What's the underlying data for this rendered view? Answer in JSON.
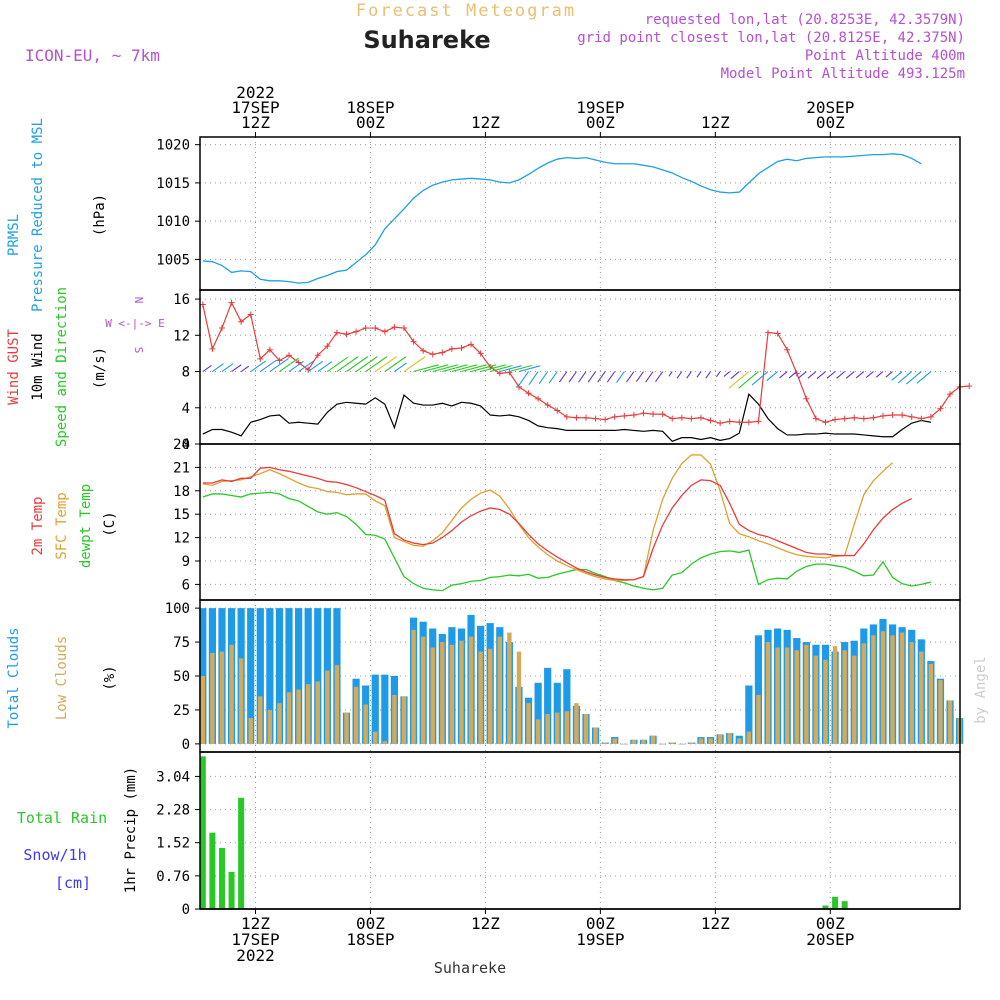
{
  "header": {
    "forecast_title": "Forecast Meteogram",
    "location": "Suhareke",
    "model": "ICON-EU,  ~ 7km",
    "requested": "requested lon,lat (20.8253E, 42.3579N)",
    "grid_point": "grid point closest lon,lat (20.8125E, 42.375N)",
    "point_altitude": "Point Altitude 400m",
    "model_altitude": "Model Point Altitude 493.125m"
  },
  "time_axis": {
    "top_labels": [
      {
        "hour": 0,
        "lines": [
          "2022",
          "17SEP",
          "12Z"
        ]
      },
      {
        "hour": 12,
        "lines": [
          "18SEP",
          "00Z"
        ]
      },
      {
        "hour": 24,
        "lines": [
          "12Z"
        ]
      },
      {
        "hour": 36,
        "lines": [
          "19SEP",
          "00Z"
        ]
      },
      {
        "hour": 48,
        "lines": [
          "12Z"
        ]
      },
      {
        "hour": 60,
        "lines": [
          "20SEP",
          "00Z"
        ]
      }
    ],
    "bottom_labels": [
      {
        "hour": 0,
        "lines": [
          "12Z",
          "17SEP",
          "2022"
        ]
      },
      {
        "hour": 12,
        "lines": [
          "00Z",
          "18SEP"
        ]
      },
      {
        "hour": 24,
        "lines": [
          "12Z"
        ]
      },
      {
        "hour": 36,
        "lines": [
          "00Z",
          "19SEP"
        ]
      },
      {
        "hour": 48,
        "lines": [
          "12Z"
        ]
      },
      {
        "hour": 60,
        "lines": [
          "00Z",
          "20SEP"
        ]
      }
    ],
    "footer": "Suhareke",
    "watermark": "by Angel"
  },
  "colors": {
    "pressure": "#1ea0e6",
    "gust": "#e83c3c",
    "wind": "#000000",
    "dir_green": "#28c828",
    "temp2m": "#e83c3c",
    "sfc": "#e0a030",
    "dewpt": "#28c828",
    "total_cloud": "#1e9be8",
    "low_cloud": "#d2aa5a",
    "rain": "#28c828",
    "snow": "#3c3cf0",
    "meta": "#b450d2",
    "title_orange": "#e8c070"
  },
  "chart_data": [
    {
      "id": "pressure",
      "type": "line",
      "label_lines": [
        "PRMSL",
        "Pressure Reduced to MSL"
      ],
      "unit": "(hPa)",
      "ylim": [
        1001,
        1021
      ],
      "yticks": [
        1005,
        1010,
        1015,
        1020
      ],
      "x_hours_start": -5.5,
      "x_step": 1,
      "values": [
        1004.8,
        1004.7,
        1004.2,
        1003.3,
        1003.5,
        1003.4,
        1002.4,
        1002.2,
        1002.2,
        1002.1,
        1001.9,
        1002.0,
        1002.5,
        1002.9,
        1003.4,
        1003.6,
        1004.6,
        1005.6,
        1006.9,
        1009.0,
        1010.3,
        1011.6,
        1013.0,
        1014.0,
        1014.7,
        1015.1,
        1015.4,
        1015.5,
        1015.6,
        1015.5,
        1015.4,
        1015.1,
        1015.0,
        1015.4,
        1016.1,
        1016.9,
        1017.6,
        1018.1,
        1018.3,
        1018.2,
        1018.3,
        1018.0,
        1017.7,
        1017.5,
        1017.5,
        1017.5,
        1017.3,
        1017.1,
        1016.7,
        1016.3,
        1015.7,
        1015.2,
        1014.6,
        1014.1,
        1013.8,
        1013.7,
        1013.8,
        1015.0,
        1016.2,
        1017.0,
        1017.8,
        1018.1,
        1017.9,
        1018.2,
        1018.3,
        1018.4,
        1018.4,
        1018.4,
        1018.5,
        1018.6,
        1018.7,
        1018.7,
        1018.8,
        1018.7,
        1018.2,
        1017.5
      ]
    },
    {
      "id": "wind",
      "type": "line",
      "label_lines": [
        "Wind GUST",
        "10m Wind",
        "Speed and Direction"
      ],
      "unit": "(m/s)",
      "compass": [
        "N",
        "W <-|-> E",
        "S"
      ],
      "ylim": [
        0,
        17
      ],
      "yticks": [
        0,
        4,
        8,
        12,
        16
      ],
      "x_hours_start": -5.5,
      "x_step": 1,
      "gust": [
        15.4,
        10.5,
        12.8,
        15.6,
        13.5,
        14.3,
        9.4,
        10.4,
        9.2,
        9.8,
        9.0,
        8.2,
        9.8,
        10.8,
        12.3,
        12.1,
        12.4,
        12.8,
        12.8,
        12.4,
        12.9,
        12.8,
        11.3,
        10.3,
        9.9,
        10.1,
        10.5,
        10.6,
        11.0,
        10.0,
        8.5,
        7.8,
        7.9,
        6.3,
        5.6,
        5.0,
        4.3,
        3.7,
        3.0,
        2.9,
        2.9,
        2.8,
        2.7,
        3.0,
        3.1,
        3.2,
        3.4,
        3.3,
        3.3,
        2.8,
        2.9,
        2.8,
        2.9,
        2.6,
        2.3,
        2.5,
        2.4,
        2.4,
        2.5,
        12.3,
        12.2,
        10.4,
        7.8,
        5.0,
        2.8,
        2.4,
        2.7,
        2.8,
        2.9,
        2.8,
        2.9,
        3.1,
        3.2,
        3.2,
        3.0,
        2.8,
        3.0,
        3.9,
        5.5,
        6.3,
        6.4
      ],
      "wind": [
        1.1,
        1.6,
        1.6,
        1.3,
        0.9,
        2.4,
        2.7,
        3.1,
        3.2,
        2.3,
        2.4,
        2.3,
        2.2,
        3.5,
        4.4,
        4.6,
        4.5,
        4.4,
        5.1,
        4.4,
        1.8,
        5.4,
        4.5,
        4.3,
        4.3,
        4.5,
        4.2,
        4.6,
        4.5,
        4.2,
        3.2,
        3.1,
        3.2,
        3.0,
        2.6,
        2.0,
        1.8,
        1.7,
        1.5,
        1.5,
        1.5,
        1.5,
        1.5,
        1.5,
        1.6,
        1.5,
        1.4,
        1.5,
        1.4,
        0.3,
        0.7,
        0.7,
        0.5,
        0.7,
        0.4,
        0.6,
        1.2,
        5.5,
        4.4,
        2.8,
        1.7,
        1.0,
        1.0,
        1.1,
        1.1,
        1.2,
        1.1,
        1.1,
        1.1,
        1.0,
        0.9,
        0.8,
        0.8,
        1.6,
        2.3,
        2.6,
        2.4
      ]
    },
    {
      "id": "temperature",
      "type": "line",
      "label_lines": [
        "2m Temp",
        "SFC Temp",
        "dewpt Temp"
      ],
      "unit": "(C)",
      "ylim": [
        4,
        24
      ],
      "yticks": [
        6,
        9,
        12,
        15,
        18,
        21,
        24
      ],
      "x_hours_start": -5.5,
      "x_step": 1,
      "temp2m": [
        19.0,
        19.0,
        19.4,
        19.2,
        19.6,
        19.6,
        20.9,
        21.0,
        20.7,
        20.5,
        20.2,
        19.9,
        19.6,
        19.2,
        19.1,
        18.8,
        18.4,
        17.9,
        17.4,
        16.8,
        12.5,
        11.7,
        11.3,
        11.1,
        11.3,
        12.0,
        12.9,
        14.0,
        14.8,
        15.4,
        15.8,
        15.6,
        15.0,
        13.8,
        12.4,
        11.2,
        10.3,
        9.5,
        8.8,
        8.1,
        7.6,
        7.2,
        6.9,
        6.7,
        6.6,
        6.6,
        7.0,
        10.6,
        13.6,
        15.8,
        17.4,
        18.7,
        19.4,
        19.3,
        18.7,
        16.4,
        13.7,
        12.9,
        12.4,
        12.1,
        11.6,
        11.1,
        10.6,
        10.1,
        9.9,
        9.9,
        9.7,
        9.7,
        9.7,
        11.2,
        13.0,
        14.5,
        15.6,
        16.4,
        17.0
      ],
      "sfc": [
        18.9,
        18.7,
        19.2,
        19.3,
        19.4,
        19.8,
        20.2,
        20.7,
        20.2,
        19.6,
        19.0,
        18.5,
        18.3,
        17.9,
        17.8,
        17.5,
        17.6,
        17.6,
        16.7,
        16.1,
        12.0,
        11.5,
        11.0,
        10.9,
        11.6,
        12.6,
        14.2,
        15.8,
        16.9,
        17.7,
        18.1,
        17.3,
        15.7,
        13.7,
        12.0,
        10.8,
        9.8,
        9.0,
        8.4,
        7.9,
        7.4,
        7.0,
        6.7,
        6.5,
        6.5,
        6.6,
        7.0,
        12.9,
        16.9,
        19.6,
        21.5,
        22.6,
        22.6,
        21.4,
        18.0,
        13.8,
        12.5,
        12.1,
        11.6,
        11.2,
        10.7,
        10.2,
        9.8,
        9.6,
        9.5,
        9.4,
        9.6,
        9.7,
        13.7,
        17.5,
        19.3,
        20.5,
        21.6
      ],
      "dewpt": [
        17.2,
        17.6,
        17.6,
        17.4,
        17.2,
        17.6,
        17.7,
        17.8,
        17.6,
        17.0,
        16.7,
        16.0,
        15.3,
        15.0,
        15.2,
        14.7,
        13.7,
        12.4,
        12.3,
        11.8,
        9.4,
        7.0,
        6.1,
        5.5,
        5.3,
        5.2,
        5.9,
        6.1,
        6.4,
        6.5,
        6.9,
        7.0,
        7.2,
        7.1,
        7.3,
        6.8,
        6.9,
        7.3,
        7.6,
        7.9,
        7.9,
        7.4,
        7.0,
        6.5,
        6.2,
        5.8,
        5.5,
        5.3,
        5.5,
        7.2,
        7.5,
        8.6,
        9.4,
        9.9,
        10.2,
        10.3,
        10.1,
        10.4,
        6.0,
        6.6,
        6.8,
        6.7,
        7.7,
        8.3,
        8.6,
        8.6,
        8.4,
        8.2,
        7.7,
        7.1,
        7.2,
        8.9,
        6.9,
        6.1,
        5.8,
        6.0,
        6.3
      ]
    },
    {
      "id": "clouds",
      "type": "bar",
      "label_lines": [
        "Total Clouds",
        "Low Clouds"
      ],
      "unit": "(%)",
      "ylim": [
        -6,
        106
      ],
      "yticks": [
        0,
        25,
        50,
        75,
        100
      ],
      "x_hours_start": -5.5,
      "x_step": 1,
      "total": [
        100,
        100,
        100,
        100,
        100,
        100,
        100,
        100,
        100,
        100,
        100,
        100,
        100,
        100,
        100,
        23,
        48,
        43,
        51,
        51,
        50,
        35,
        93,
        90,
        85,
        81,
        86,
        85,
        95,
        87,
        89,
        86,
        75,
        42,
        34,
        45,
        56,
        45,
        55,
        28,
        22,
        12,
        1,
        5,
        0,
        3,
        3,
        6,
        0,
        1,
        0,
        1,
        5,
        5,
        7,
        8,
        6,
        43,
        80,
        84,
        85,
        84,
        78,
        75,
        73,
        73,
        68,
        75,
        76,
        85,
        88,
        92,
        88,
        86,
        84,
        77,
        61,
        48,
        32,
        19
      ],
      "low": [
        50,
        67,
        68,
        73,
        63,
        19,
        35,
        25,
        30,
        38,
        40,
        44,
        46,
        54,
        58,
        23,
        42,
        29,
        9,
        2,
        36,
        35,
        84,
        79,
        71,
        75,
        73,
        76,
        79,
        68,
        70,
        79,
        82,
        68,
        30,
        18,
        22,
        23,
        24,
        30,
        22,
        12,
        1,
        4,
        0,
        3,
        3,
        6,
        0,
        1,
        0,
        1,
        4,
        4,
        7,
        8,
        4,
        9,
        36,
        75,
        71,
        71,
        69,
        73,
        65,
        62,
        72,
        69,
        65,
        74,
        80,
        83,
        80,
        82,
        75,
        68,
        59,
        47,
        32,
        19
      ]
    },
    {
      "id": "precip",
      "type": "bar",
      "label_lines": [
        "Total  Rain",
        "Snow/1h",
        "[cm]"
      ],
      "unit": "1hr Precip (mm)",
      "ylim": [
        0,
        3.6
      ],
      "yticks": [
        0,
        0.76,
        1.52,
        2.28,
        3.04
      ],
      "ytick_labels": [
        "0",
        "0.76",
        "1.52",
        "2.28",
        "3.04"
      ],
      "x_hours_start": -5.5,
      "x_step": 1,
      "rain": [
        3.5,
        1.75,
        1.4,
        0.85,
        2.55,
        0,
        0,
        0,
        0,
        0,
        0,
        0,
        0,
        0,
        0,
        0,
        0,
        0,
        0,
        0,
        0,
        0,
        0,
        0,
        0,
        0,
        0,
        0,
        0,
        0,
        0,
        0,
        0,
        0,
        0,
        0,
        0,
        0,
        0,
        0,
        0,
        0,
        0,
        0,
        0,
        0,
        0,
        0,
        0,
        0,
        0,
        0,
        0,
        0,
        0,
        0,
        0,
        0,
        0,
        0,
        0,
        0,
        0,
        0,
        0,
        0.08,
        0.28,
        0.18,
        0,
        0,
        0,
        0,
        0,
        0,
        0,
        0,
        0,
        0,
        0,
        0
      ]
    }
  ]
}
